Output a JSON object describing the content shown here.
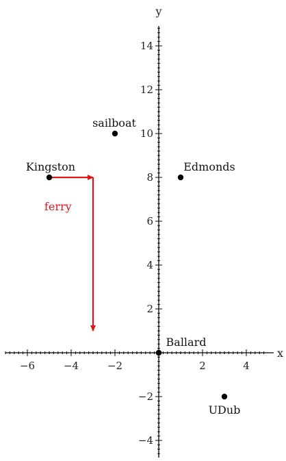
{
  "plot": {
    "x_axis_label": "x",
    "y_axis_label": "y",
    "x_range": [
      -7,
      5
    ],
    "y_range": [
      -5,
      15
    ],
    "x_ticks": [
      -6,
      -4,
      -2,
      2,
      4
    ],
    "y_ticks": [
      -4,
      -2,
      2,
      4,
      6,
      8,
      10,
      12,
      14
    ],
    "minor_ticks": true
  },
  "points": [
    {
      "label": "sailboat",
      "x": -2,
      "y": 10
    },
    {
      "label": "Kingston",
      "x": -5,
      "y": 8
    },
    {
      "label": "Edmonds",
      "x": 1,
      "y": 8
    },
    {
      "label": "Ballard",
      "x": 0,
      "y": 0
    },
    {
      "label": "UDub",
      "x": 3,
      "y": -2
    }
  ],
  "ferry": {
    "label": "ferry",
    "color": "#e0141b",
    "path": [
      [
        -5,
        8
      ],
      [
        -3,
        8
      ],
      [
        -3,
        1
      ]
    ]
  }
}
